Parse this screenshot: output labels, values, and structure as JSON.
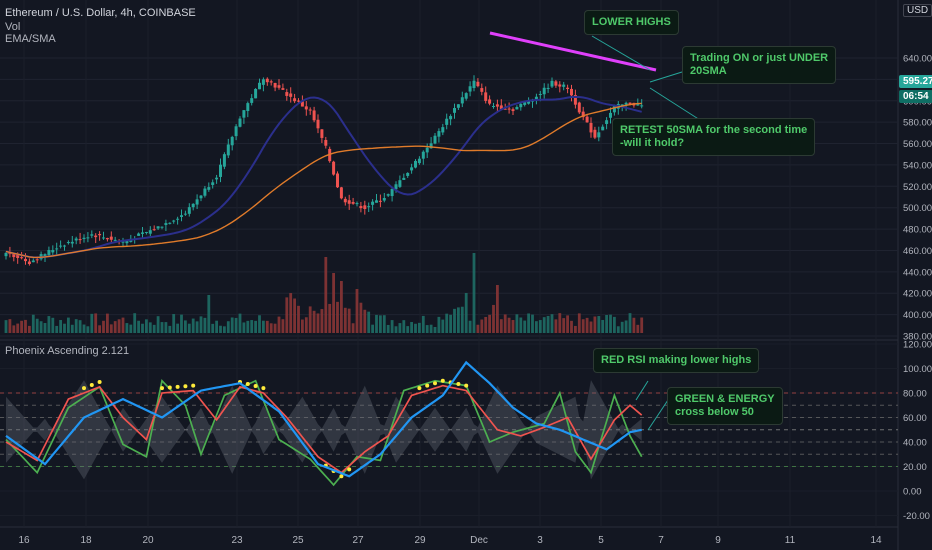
{
  "header": {
    "title": "Ethereum / U.S. Dollar, 4h, COINBASE",
    "vol_label": "Vol",
    "ma_label": "EMA/SMA",
    "osc_label": "Phoenix Ascending 2.121",
    "currency": "USD"
  },
  "badges": {
    "last_price": "595.27",
    "countdown": "06:54",
    "last_color": "#26a69a",
    "countdown_color": "#0f6e64"
  },
  "annotations": {
    "lower_highs": "LOWER HIGHS",
    "trading_on": "Trading ON or just UNDER\n20SMA",
    "retest": "RETEST 50SMA for the second time\n-will it hold?",
    "red_rsi": "RED RSI making lower highs",
    "green_energy": "GREEN & ENERGY\ncross below 50"
  },
  "colors": {
    "bg": "#131722",
    "up": "#26a69a",
    "down": "#ef5350",
    "sma20": "#2b2f8c",
    "sma50": "#e07b2a",
    "trendline": "#e040fb",
    "osc_green": "#4caf50",
    "osc_red": "#f0544f",
    "osc_blue": "#2196f3",
    "osc_energy": "#5d606b",
    "dots": "#ffeb3b"
  },
  "chart_data": [
    {
      "type": "candlestick",
      "title": "Ethereum / U.S. Dollar, 4h, COINBASE",
      "y_ticks": [
        380,
        400,
        420,
        440,
        460,
        480,
        500,
        520,
        540,
        560,
        580,
        600,
        620,
        640
      ],
      "ylim": [
        375,
        650
      ],
      "x_ticks": [
        "16",
        "18",
        "20",
        "23",
        "25",
        "27",
        "29",
        "Dec",
        "3",
        "5",
        "7",
        "9",
        "11",
        "14"
      ],
      "last_price": 595.27,
      "key_points": [
        [
          0,
          459
        ],
        [
          6,
          449
        ],
        [
          14,
          465
        ],
        [
          22,
          475
        ],
        [
          30,
          468
        ],
        [
          38,
          480
        ],
        [
          46,
          495
        ],
        [
          54,
          530
        ],
        [
          60,
          585
        ],
        [
          66,
          622
        ],
        [
          72,
          606
        ],
        [
          78,
          590
        ],
        [
          82,
          556
        ],
        [
          86,
          508
        ],
        [
          92,
          500
        ],
        [
          98,
          512
        ],
        [
          104,
          538
        ],
        [
          110,
          566
        ],
        [
          116,
          598
        ],
        [
          120,
          618
        ],
        [
          124,
          596
        ],
        [
          130,
          592
        ],
        [
          136,
          604
        ],
        [
          140,
          617
        ],
        [
          144,
          612
        ],
        [
          148,
          584
        ],
        [
          151,
          566
        ],
        [
          156,
          594
        ],
        [
          160,
          598
        ],
        [
          163,
          595
        ]
      ],
      "annotations": [
        "LOWER HIGHS",
        "Trading ON or just UNDER 20SMA",
        "RETEST 50SMA for the second time -will it hold?"
      ]
    },
    {
      "type": "line",
      "title": "Phoenix Ascending 2.121",
      "y_ticks": [
        -20,
        0,
        20,
        40,
        60,
        80,
        100,
        120
      ],
      "ylim": [
        -30,
        125
      ],
      "levels": [
        20,
        30,
        40,
        50,
        60,
        70,
        80
      ],
      "series": [
        {
          "color": "green",
          "key_points": [
            [
              0,
              42
            ],
            [
              8,
              15
            ],
            [
              16,
              68
            ],
            [
              24,
              85
            ],
            [
              30,
              38
            ],
            [
              36,
              28
            ],
            [
              40,
              90
            ],
            [
              46,
              70
            ],
            [
              50,
              30
            ],
            [
              56,
              78
            ],
            [
              64,
              90
            ],
            [
              70,
              42
            ],
            [
              78,
              26
            ],
            [
              84,
              5
            ],
            [
              90,
              28
            ],
            [
              96,
              25
            ],
            [
              102,
              82
            ],
            [
              110,
              90
            ],
            [
              118,
              86
            ],
            [
              124,
              40
            ],
            [
              130,
              48
            ],
            [
              138,
              55
            ],
            [
              142,
              80
            ],
            [
              146,
              32
            ],
            [
              150,
              15
            ],
            [
              156,
              78
            ],
            [
              160,
              45
            ],
            [
              163,
              28
            ]
          ]
        },
        {
          "color": "red",
          "key_points": [
            [
              0,
              40
            ],
            [
              8,
              25
            ],
            [
              16,
              75
            ],
            [
              24,
              85
            ],
            [
              30,
              60
            ],
            [
              36,
              42
            ],
            [
              40,
              80
            ],
            [
              48,
              82
            ],
            [
              54,
              58
            ],
            [
              60,
              85
            ],
            [
              66,
              80
            ],
            [
              72,
              60
            ],
            [
              80,
              28
            ],
            [
              86,
              15
            ],
            [
              92,
              32
            ],
            [
              98,
              45
            ],
            [
              104,
              78
            ],
            [
              112,
              86
            ],
            [
              118,
              82
            ],
            [
              126,
              50
            ],
            [
              132,
              45
            ],
            [
              138,
              52
            ],
            [
              144,
              60
            ],
            [
              150,
              26
            ],
            [
              156,
              58
            ],
            [
              160,
              70
            ],
            [
              163,
              62
            ]
          ]
        },
        {
          "color": "blue",
          "key_points": [
            [
              0,
              45
            ],
            [
              10,
              22
            ],
            [
              20,
              60
            ],
            [
              30,
              75
            ],
            [
              40,
              60
            ],
            [
              50,
              82
            ],
            [
              60,
              88
            ],
            [
              70,
              65
            ],
            [
              80,
              22
            ],
            [
              88,
              12
            ],
            [
              96,
              30
            ],
            [
              104,
              60
            ],
            [
              112,
              78
            ],
            [
              118,
              105
            ],
            [
              124,
              88
            ],
            [
              130,
              68
            ],
            [
              136,
              55
            ],
            [
              142,
              50
            ],
            [
              148,
              42
            ],
            [
              154,
              34
            ],
            [
              160,
              48
            ],
            [
              163,
              50
            ]
          ]
        }
      ],
      "annotations": [
        "RED RSI making lower highs",
        "GREEN & ENERGY cross below 50"
      ]
    }
  ]
}
